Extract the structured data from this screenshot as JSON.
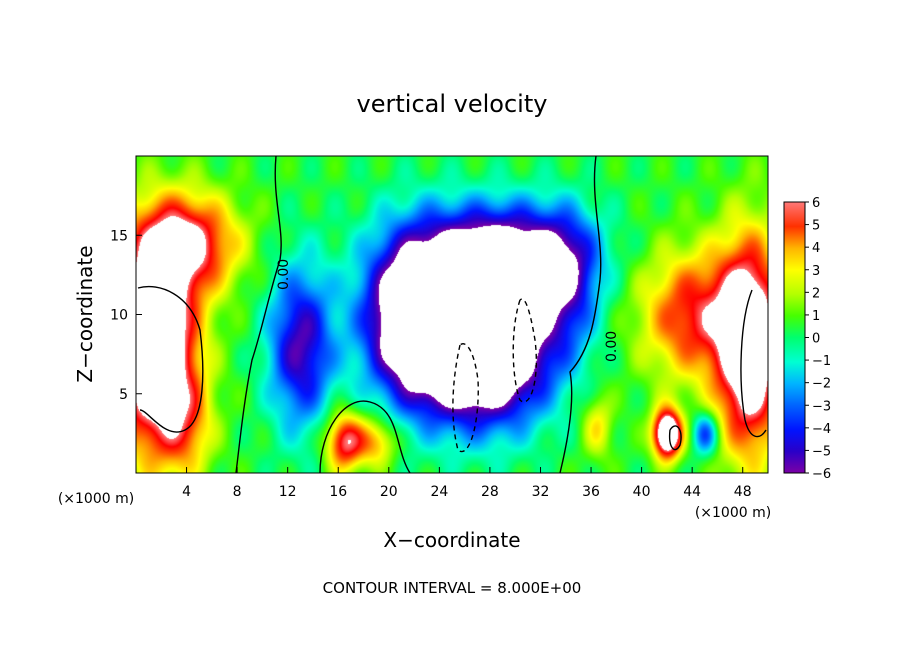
{
  "chart_data": {
    "type": "heatmap",
    "title": "vertical velocity",
    "xlabel": "X−coordinate",
    "ylabel": "Z−coordinate",
    "x_unit": "(×1000 m)",
    "y_unit": "(×1000 m)",
    "xlim": [
      0,
      50
    ],
    "ylim": [
      0,
      20
    ],
    "x_ticks": [
      "4",
      "8",
      "12",
      "16",
      "20",
      "24",
      "28",
      "32",
      "36",
      "40",
      "44",
      "48"
    ],
    "y_ticks": [
      "5",
      "10",
      "15"
    ],
    "colorbar": {
      "ticks": [
        "6",
        "5",
        "4",
        "3",
        "2",
        "1",
        "0",
        "−1",
        "−2",
        "−3",
        "−4",
        "−5",
        "−6"
      ],
      "range": [
        -6,
        6
      ],
      "colors": [
        "#7b00a6",
        "#2a00c8",
        "#0014ff",
        "#0064ff",
        "#00b4ff",
        "#00ffd2",
        "#00ff6e",
        "#46ff00",
        "#b4ff00",
        "#ffff00",
        "#ffb400",
        "#ff5000",
        "#ff0000",
        "#ff7878"
      ]
    },
    "contour_labels": [
      "0.00",
      "0.00"
    ],
    "annotation": "CONTOUR INTERVAL = 8.000E+00",
    "grid": false,
    "features": [
      {
        "name": "updraft-left",
        "x": 2,
        "z": 8,
        "value": 10
      },
      {
        "name": "downdraft-core",
        "x": 28,
        "z": 8,
        "value": -10
      },
      {
        "name": "updraft-right",
        "x": 48,
        "z": 8,
        "value": 10
      },
      {
        "name": "updraft-right-low",
        "x": 42,
        "z": 2,
        "value": 8
      },
      {
        "name": "updraft-low-16",
        "x": 16,
        "z": 2,
        "value": 5
      }
    ]
  }
}
